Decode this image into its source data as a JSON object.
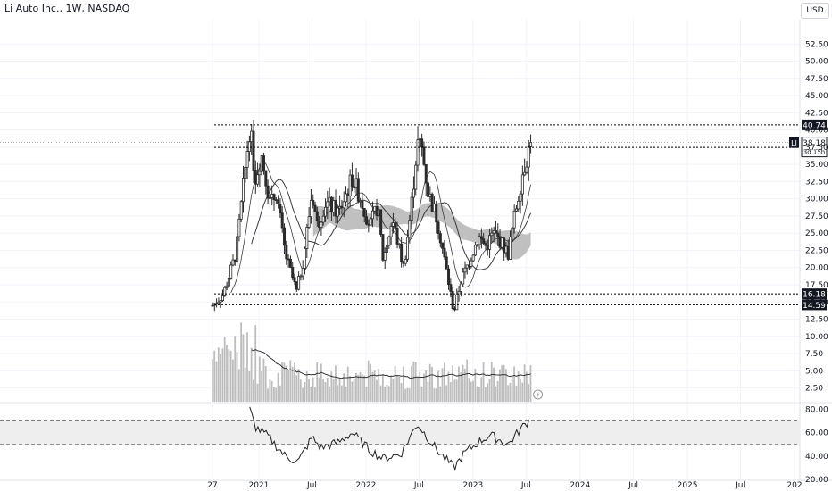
{
  "header": {
    "title": "Li Auto Inc., 1W, NASDAQ",
    "currency": "USD"
  },
  "colors": {
    "up": "#2b2b2b",
    "down": "#2b2b2b",
    "ma_band": "#b5b5b5",
    "volume": "#bdbdbd",
    "badge_bg": "#131722",
    "badge_fg": "#ffffff",
    "grid": "#f0f3fa",
    "axis_text": "#131722"
  },
  "chart_data": [
    {
      "type": "candlestick",
      "yaxis": {
        "min": 0.5,
        "max": 55.0,
        "ticks": [
          2.5,
          5.0,
          7.5,
          10.0,
          12.5,
          15.0,
          17.5,
          20.0,
          22.5,
          25.0,
          27.5,
          30.0,
          32.5,
          35.0,
          37.5,
          40.0,
          42.5,
          45.0,
          47.5,
          50.0,
          52.5
        ],
        "tick_labels": [
          "2.50",
          "5.00",
          "7.50",
          "10.00",
          "12.50",
          "15.00",
          "17.50",
          "20.00",
          "22.50",
          "25.00",
          "27.50",
          "30.00",
          "32.50",
          "35.00",
          "37.50",
          "40.00",
          "42.50",
          "45.00",
          "47.50",
          "50.00",
          "52.50"
        ]
      },
      "xaxis": {
        "ticks": [
          "2020-07-27",
          "2021-01-01",
          "2021-07-01",
          "2022-01-01",
          "2022-07-01",
          "2023-01-01",
          "2023-07-01",
          "2024-01-01",
          "2024-07-01",
          "2025-01-01",
          "2025-07-01",
          "2026-01-01"
        ],
        "tick_labels": [
          "27",
          "2021",
          "Jul",
          "2022",
          "Jul",
          "2023",
          "Jul",
          "2024",
          "Jul",
          "2025",
          "Jul",
          "202"
        ]
      },
      "price_anchors": [
        [
          "2020-07-27",
          14.5
        ],
        [
          "2020-09-01",
          16.0
        ],
        [
          "2020-10-15",
          22.0
        ],
        [
          "2020-11-15",
          34.0
        ],
        [
          "2020-12-01",
          40.5
        ],
        [
          "2020-12-20",
          33.0
        ],
        [
          "2021-01-10",
          36.5
        ],
        [
          "2021-02-10",
          29.0
        ],
        [
          "2021-03-01",
          31.0
        ],
        [
          "2021-04-01",
          22.0
        ],
        [
          "2021-05-10",
          16.5
        ],
        [
          "2021-06-01",
          21.0
        ],
        [
          "2021-07-01",
          31.0
        ],
        [
          "2021-07-20",
          26.0
        ],
        [
          "2021-08-15",
          29.5
        ],
        [
          "2021-10-01",
          28.0
        ],
        [
          "2021-11-15",
          33.0
        ],
        [
          "2021-12-15",
          30.0
        ],
        [
          "2022-01-15",
          26.0
        ],
        [
          "2022-02-10",
          29.0
        ],
        [
          "2022-03-01",
          21.0
        ],
        [
          "2022-04-01",
          27.0
        ],
        [
          "2022-05-10",
          20.0
        ],
        [
          "2022-06-05",
          29.0
        ],
        [
          "2022-06-25",
          38.0
        ],
        [
          "2022-07-10",
          37.5
        ],
        [
          "2022-08-01",
          31.0
        ],
        [
          "2022-09-01",
          27.0
        ],
        [
          "2022-10-01",
          20.0
        ],
        [
          "2022-10-28",
          13.5
        ],
        [
          "2022-11-20",
          18.0
        ],
        [
          "2022-12-20",
          21.0
        ],
        [
          "2023-01-20",
          24.5
        ],
        [
          "2023-02-15",
          23.0
        ],
        [
          "2023-03-10",
          25.0
        ],
        [
          "2023-04-01",
          24.0
        ],
        [
          "2023-05-01",
          22.0
        ],
        [
          "2023-05-25",
          28.0
        ],
        [
          "2023-06-20",
          34.0
        ],
        [
          "2023-07-17",
          38.18
        ]
      ],
      "levels": [
        {
          "value": 40.74,
          "label": "40.74",
          "style": "dotted"
        },
        {
          "value": 37.47,
          "label": "37.47",
          "style": "dotted"
        },
        {
          "value": 16.18,
          "label": "16.18",
          "style": "dotted"
        },
        {
          "value": 14.59,
          "label": "14.59",
          "style": "dotted"
        }
      ],
      "last_price": {
        "value": 38.18,
        "label": "38.18",
        "symbol": "LI",
        "countdown": "3d 15h"
      },
      "moving_averages": [
        "MA 20",
        "MA 50",
        "MA 200 band"
      ],
      "volume": {
        "type": "bar",
        "relative_max": 1.0
      }
    },
    {
      "type": "line",
      "name": "",
      "yaxis": {
        "min": 20,
        "max": 85,
        "ticks": [
          20,
          40,
          60,
          80
        ],
        "tick_labels": [
          "20.00",
          "40.00",
          "60.00",
          "80.00"
        ]
      },
      "band": {
        "upper": 70,
        "lower": 50
      },
      "rsi_anchors": [
        [
          "2020-12-01",
          80
        ],
        [
          "2020-12-20",
          65
        ],
        [
          "2021-02-01",
          57
        ],
        [
          "2021-04-01",
          40
        ],
        [
          "2021-05-15",
          35
        ],
        [
          "2021-07-01",
          56
        ],
        [
          "2021-08-01",
          47
        ],
        [
          "2021-10-01",
          52
        ],
        [
          "2021-11-15",
          60
        ],
        [
          "2022-01-15",
          45
        ],
        [
          "2022-03-01",
          38
        ],
        [
          "2022-05-01",
          42
        ],
        [
          "2022-06-25",
          68
        ],
        [
          "2022-07-15",
          61
        ],
        [
          "2022-09-01",
          45
        ],
        [
          "2022-10-28",
          30
        ],
        [
          "2022-12-01",
          42
        ],
        [
          "2023-01-20",
          52
        ],
        [
          "2023-03-01",
          58
        ],
        [
          "2023-05-01",
          50
        ],
        [
          "2023-06-15",
          64
        ],
        [
          "2023-07-17",
          72
        ]
      ]
    }
  ]
}
